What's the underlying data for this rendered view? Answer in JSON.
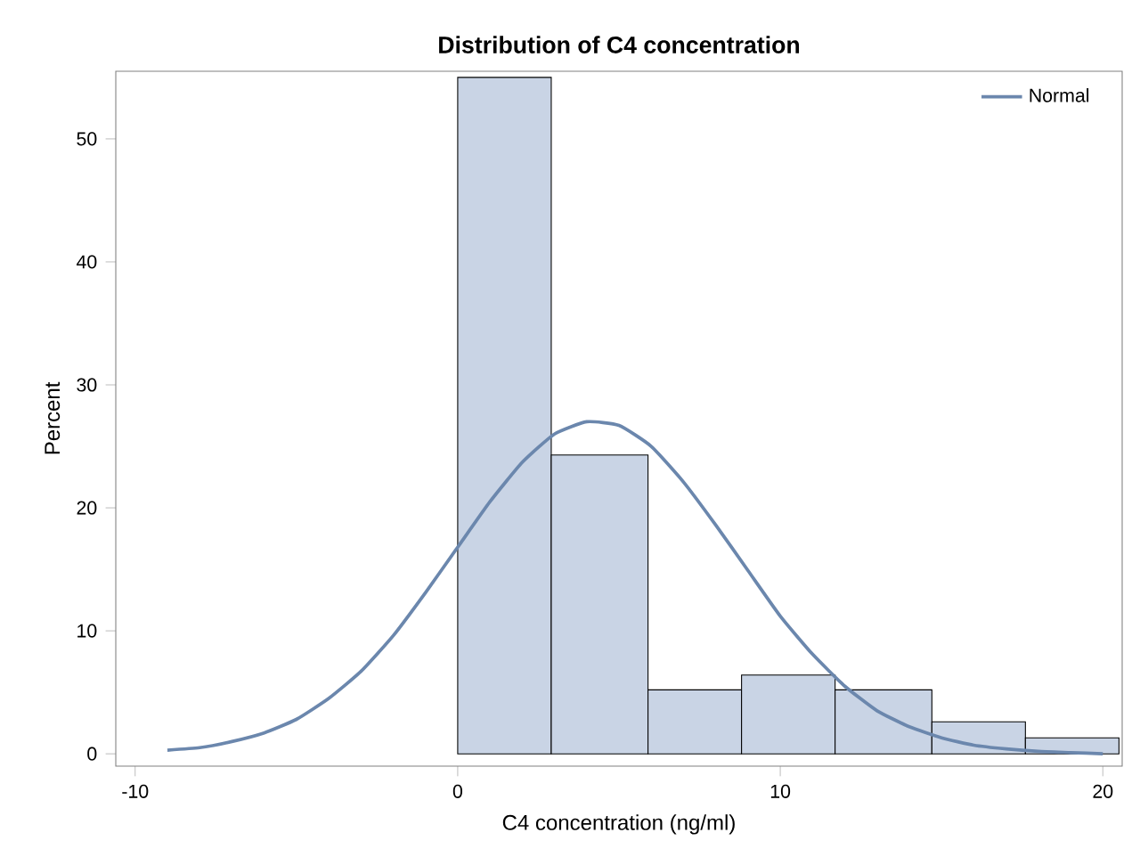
{
  "chart_data": {
    "type": "histogram",
    "title": "Distribution of C4 concentration",
    "xlabel": "C4 concentration (ng/ml)",
    "ylabel": "Percent",
    "bins": [
      0,
      2.9,
      5.9,
      8.8,
      11.7,
      14.7,
      17.6,
      20.5
    ],
    "values": [
      55,
      24.3,
      5.2,
      6.4,
      5.2,
      2.6,
      1.3
    ],
    "color": "#c9d4e5",
    "series": [
      {
        "name": "Normal",
        "type": "line",
        "color": "#6b87ad",
        "x": [
          -9,
          -8,
          -7,
          -6,
          -5,
          -4,
          -3,
          -2,
          -1,
          0,
          1,
          2,
          3,
          4,
          5,
          6,
          7,
          8,
          9,
          10,
          11,
          12,
          13,
          14,
          15,
          16,
          17,
          18,
          19,
          20
        ],
        "values": [
          0.3,
          0.5,
          1,
          1.7,
          2.8,
          4.5,
          6.7,
          9.6,
          13.1,
          16.8,
          20.5,
          23.7,
          26,
          27,
          26.7,
          25,
          22.1,
          18.6,
          14.9,
          11.2,
          8.1,
          5.5,
          3.5,
          2.2,
          1.3,
          0.7,
          0.4,
          0.2,
          0.1,
          0
        ]
      }
    ],
    "xlim": [
      -10.6,
      20.6
    ],
    "ylim": [
      -1,
      55.5
    ],
    "xticks": [
      -10,
      0,
      10,
      20
    ],
    "yticks": [
      0,
      10,
      20,
      30,
      40,
      50
    ],
    "legend": "top right",
    "grid": false
  }
}
